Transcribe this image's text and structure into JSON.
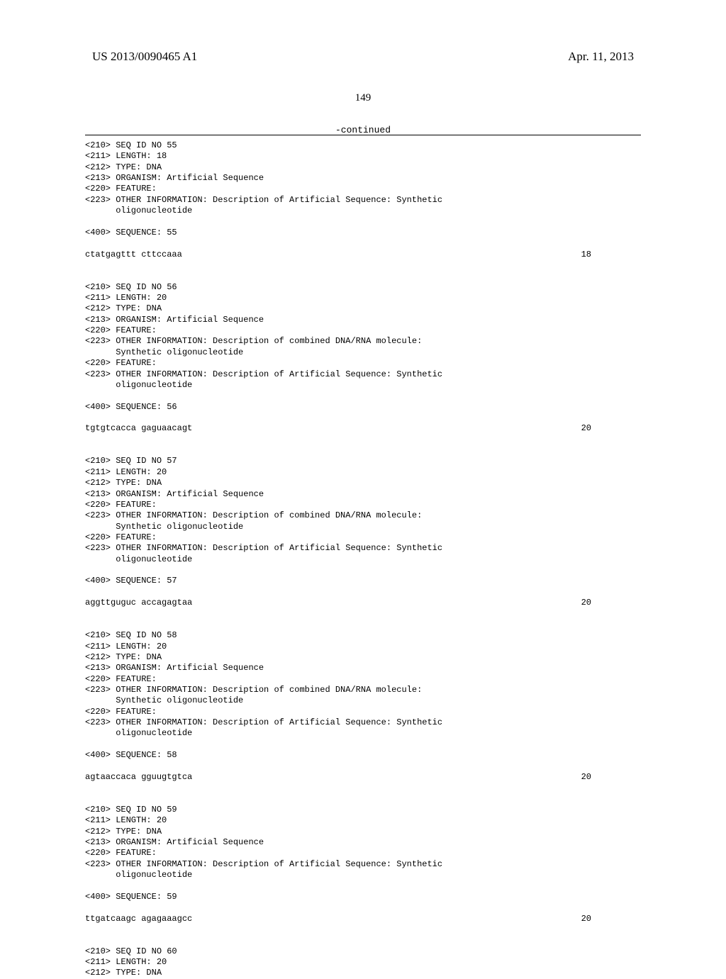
{
  "header": {
    "pubNumber": "US 2013/0090465 A1",
    "pubDate": "Apr. 11, 2013"
  },
  "pageNumber": "149",
  "continuedLabel": "-continued",
  "sequences": [
    {
      "id": "55",
      "length": "18",
      "type": "DNA",
      "organism": "Artificial Sequence",
      "features": [
        {
          "info": "Description of Artificial Sequence: Synthetic",
          "info2": "oligonucleotide"
        }
      ],
      "seqLabel": "SEQUENCE: 55",
      "seq": "ctatgagttt cttccaaa",
      "seqLen": "18"
    },
    {
      "id": "56",
      "length": "20",
      "type": "DNA",
      "organism": "Artificial Sequence",
      "features": [
        {
          "info": "Description of combined DNA/RNA molecule:",
          "info2": "Synthetic oligonucleotide"
        },
        {
          "info": "Description of Artificial Sequence: Synthetic",
          "info2": "oligonucleotide"
        }
      ],
      "seqLabel": "SEQUENCE: 56",
      "seq": "tgtgtcacca gaguaacagt",
      "seqLen": "20"
    },
    {
      "id": "57",
      "length": "20",
      "type": "DNA",
      "organism": "Artificial Sequence",
      "features": [
        {
          "info": "Description of combined DNA/RNA molecule:",
          "info2": "Synthetic oligonucleotide"
        },
        {
          "info": "Description of Artificial Sequence: Synthetic",
          "info2": "oligonucleotide"
        }
      ],
      "seqLabel": "SEQUENCE: 57",
      "seq": "aggttguguc accagagtaa",
      "seqLen": "20"
    },
    {
      "id": "58",
      "length": "20",
      "type": "DNA",
      "organism": "Artificial Sequence",
      "features": [
        {
          "info": "Description of combined DNA/RNA molecule:",
          "info2": "Synthetic oligonucleotide"
        },
        {
          "info": "Description of Artificial Sequence: Synthetic",
          "info2": "oligonucleotide"
        }
      ],
      "seqLabel": "SEQUENCE: 58",
      "seq": "agtaaccaca gguugtgtca",
      "seqLen": "20"
    },
    {
      "id": "59",
      "length": "20",
      "type": "DNA",
      "organism": "Artificial Sequence",
      "features": [
        {
          "info": "Description of Artificial Sequence: Synthetic",
          "info2": "oligonucleotide"
        }
      ],
      "seqLabel": "SEQUENCE: 59",
      "seq": "ttgatcaagc agagaaagcc",
      "seqLen": "20"
    }
  ],
  "partial": {
    "id": "60",
    "length": "20",
    "type": "DNA"
  },
  "labels": {
    "seqIdNo": "SEQ ID NO",
    "lengthLbl": "LENGTH:",
    "typeLbl": "TYPE:",
    "organismLbl": "ORGANISM:",
    "featureLbl": "FEATURE:",
    "otherInfoLbl": "OTHER INFORMATION:"
  }
}
